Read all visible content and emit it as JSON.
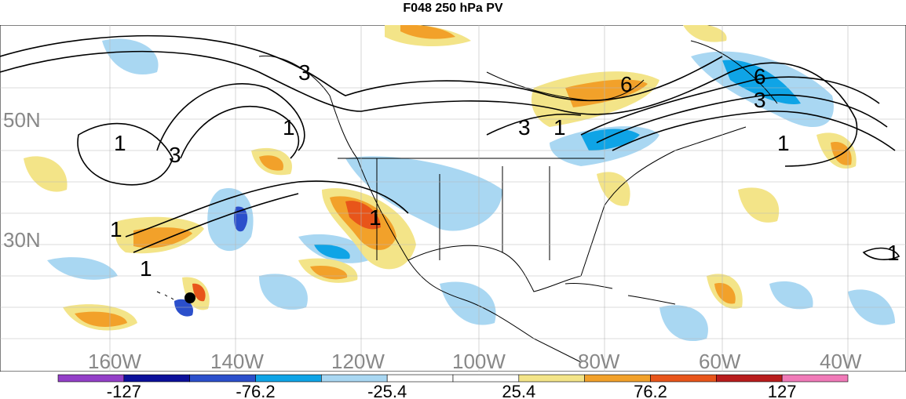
{
  "title": "F048 250 hPa PV",
  "lat_labels": [
    "50N",
    "30N"
  ],
  "lon_labels": [
    "160W",
    "140W",
    "120W",
    "100W",
    "80W",
    "60W",
    "40W"
  ],
  "contour_labels": [
    "3",
    "1",
    "3",
    "1",
    "1",
    "1",
    "1",
    "3",
    "1",
    "6",
    "6",
    "3",
    "1",
    "1"
  ],
  "colorbar": {
    "colors": [
      "#9440c8",
      "#0c109a",
      "#2b4fcb",
      "#0fa4e6",
      "#a9d7f2",
      "#ffffff",
      "#ffffff",
      "#f3e488",
      "#f2a12a",
      "#e8551a",
      "#b81c1c",
      "#f07ab8"
    ],
    "labels": [
      "-127",
      "-76.2",
      "-25.4",
      "25.4",
      "76.2",
      "127"
    ]
  },
  "colors": {
    "neg_light": "#a9d7f2",
    "neg_mid": "#0fa4e6",
    "neg_dark": "#2b4fcb",
    "pos_light": "#f3e488",
    "pos_mid": "#f2a12a",
    "pos_dark": "#e8551a"
  }
}
